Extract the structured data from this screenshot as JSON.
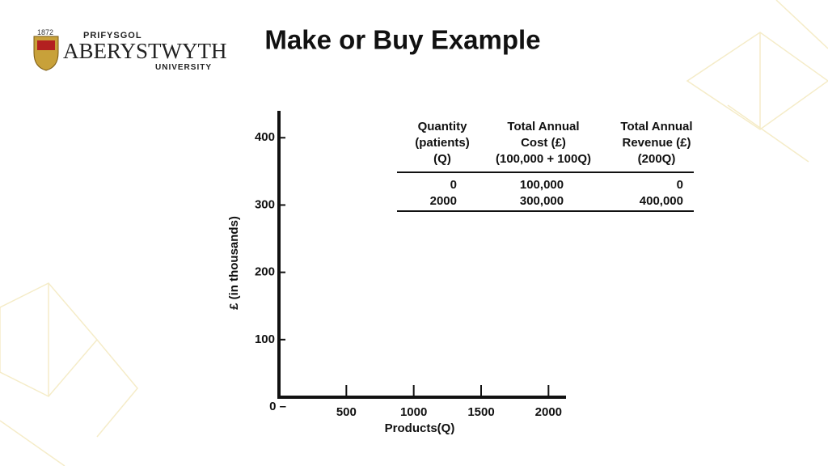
{
  "logo": {
    "year": "1872",
    "line1": "PRIFYSGOL",
    "line2": "ABERYSTWYTH",
    "line3": "UNIVERSITY"
  },
  "chart_data": {
    "type": "line",
    "title": "Make or Buy Example",
    "x_label": "Products(Q)",
    "y_label": "£ (in thousands)",
    "xlim": [
      0,
      2130
    ],
    "xticks": [
      500,
      1000,
      1500,
      2000
    ],
    "ylim": [
      0,
      440
    ],
    "yticks": [
      {
        "value": 0,
        "label": "0 –"
      },
      100,
      200,
      300,
      400
    ]
  },
  "table": {
    "headers": [
      [
        "Quantity",
        "(patients)",
        "(Q)"
      ],
      [
        "Total Annual",
        "Cost (£)",
        "(100,000 + 100Q)"
      ],
      [
        "Total Annual",
        "Revenue (£)",
        "(200Q)"
      ]
    ],
    "rows": [
      [
        "0",
        "100,000",
        "0"
      ],
      [
        "2000",
        "300,000",
        "400,000"
      ]
    ]
  }
}
